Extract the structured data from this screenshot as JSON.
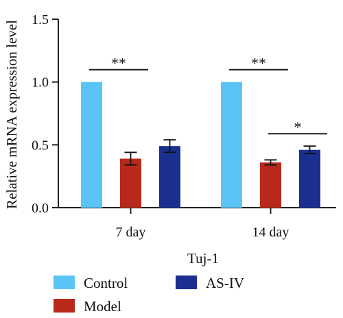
{
  "chart_data": {
    "type": "bar",
    "title": "",
    "xlabel": "Tuj-1",
    "ylabel": "Relative mRNA expression level",
    "ylim": [
      0,
      1.5
    ],
    "yticks": [
      "0.0",
      "0.5",
      "1.0",
      "1.5"
    ],
    "categories": [
      "7 day",
      "14 day"
    ],
    "series": [
      {
        "name": "Control",
        "color": "#5bc4f7",
        "values": [
          1.0,
          1.0
        ],
        "errors": [
          0,
          0
        ]
      },
      {
        "name": "Model",
        "color": "#b8291b",
        "values": [
          0.39,
          0.36
        ],
        "errors": [
          0.05,
          0.02
        ]
      },
      {
        "name": "AS-IV",
        "color": "#1a2f8f",
        "values": [
          0.49,
          0.46
        ],
        "errors": [
          0.05,
          0.03
        ]
      }
    ],
    "significance": [
      {
        "category_index": 0,
        "from_series": 0,
        "to_series": 1,
        "label": "**"
      },
      {
        "category_index": 1,
        "from_series": 0,
        "to_series": 1,
        "label": "**"
      },
      {
        "category_index": 1,
        "from_series": 1,
        "to_series": 2,
        "label": "*"
      }
    ],
    "grid": false,
    "legend_position": "bottom"
  }
}
